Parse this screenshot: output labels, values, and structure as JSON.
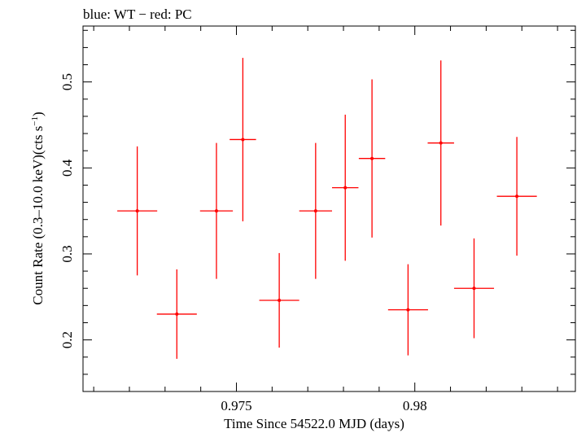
{
  "chart_data": {
    "type": "scatter",
    "title": "blue: WT − red: PC",
    "xlabel": "Time Since 54522.0 MJD (days)",
    "ylabel_main": "Count Rate (0.3–10.0 keV)(cts s",
    "ylabel_sup": "−1",
    "ylabel_end": ")",
    "xlim": [
      0.9707,
      0.9845
    ],
    "ylim": [
      0.14,
      0.565
    ],
    "xticks": [
      {
        "value": 0.975,
        "label": "0.975"
      },
      {
        "value": 0.98,
        "label": "0.98"
      }
    ],
    "yticks": [
      {
        "value": 0.2,
        "label": "0.2"
      },
      {
        "value": 0.3,
        "label": "0.3"
      },
      {
        "value": 0.4,
        "label": "0.4"
      },
      {
        "value": 0.5,
        "label": "0.5"
      }
    ],
    "grid": false,
    "series": [
      {
        "color": "#ff0000",
        "points": [
          {
            "x": 0.97222,
            "y": 0.35,
            "xerr": 0.00056,
            "yerr_lo": 0.075,
            "yerr_hi": 0.075
          },
          {
            "x": 0.97333,
            "y": 0.23,
            "xerr": 0.00056,
            "yerr_lo": 0.052,
            "yerr_hi": 0.052
          },
          {
            "x": 0.97444,
            "y": 0.35,
            "xerr": 0.00046,
            "yerr_lo": 0.079,
            "yerr_hi": 0.079
          },
          {
            "x": 0.97518,
            "y": 0.433,
            "xerr": 0.00037,
            "yerr_lo": 0.095,
            "yerr_hi": 0.095
          },
          {
            "x": 0.9762,
            "y": 0.246,
            "xerr": 0.00056,
            "yerr_lo": 0.055,
            "yerr_hi": 0.055
          },
          {
            "x": 0.97722,
            "y": 0.35,
            "xerr": 0.00046,
            "yerr_lo": 0.079,
            "yerr_hi": 0.079
          },
          {
            "x": 0.97805,
            "y": 0.377,
            "xerr": 0.00037,
            "yerr_lo": 0.085,
            "yerr_hi": 0.085
          },
          {
            "x": 0.9788,
            "y": 0.411,
            "xerr": 0.00037,
            "yerr_lo": 0.092,
            "yerr_hi": 0.092
          },
          {
            "x": 0.97981,
            "y": 0.235,
            "xerr": 0.00056,
            "yerr_lo": 0.053,
            "yerr_hi": 0.053
          },
          {
            "x": 0.98073,
            "y": 0.429,
            "xerr": 0.00037,
            "yerr_lo": 0.096,
            "yerr_hi": 0.096
          },
          {
            "x": 0.98166,
            "y": 0.26,
            "xerr": 0.00056,
            "yerr_lo": 0.058,
            "yerr_hi": 0.058
          },
          {
            "x": 0.98286,
            "y": 0.367,
            "xerr": 0.00056,
            "yerr_lo": 0.069,
            "yerr_hi": 0.069
          }
        ]
      }
    ]
  }
}
